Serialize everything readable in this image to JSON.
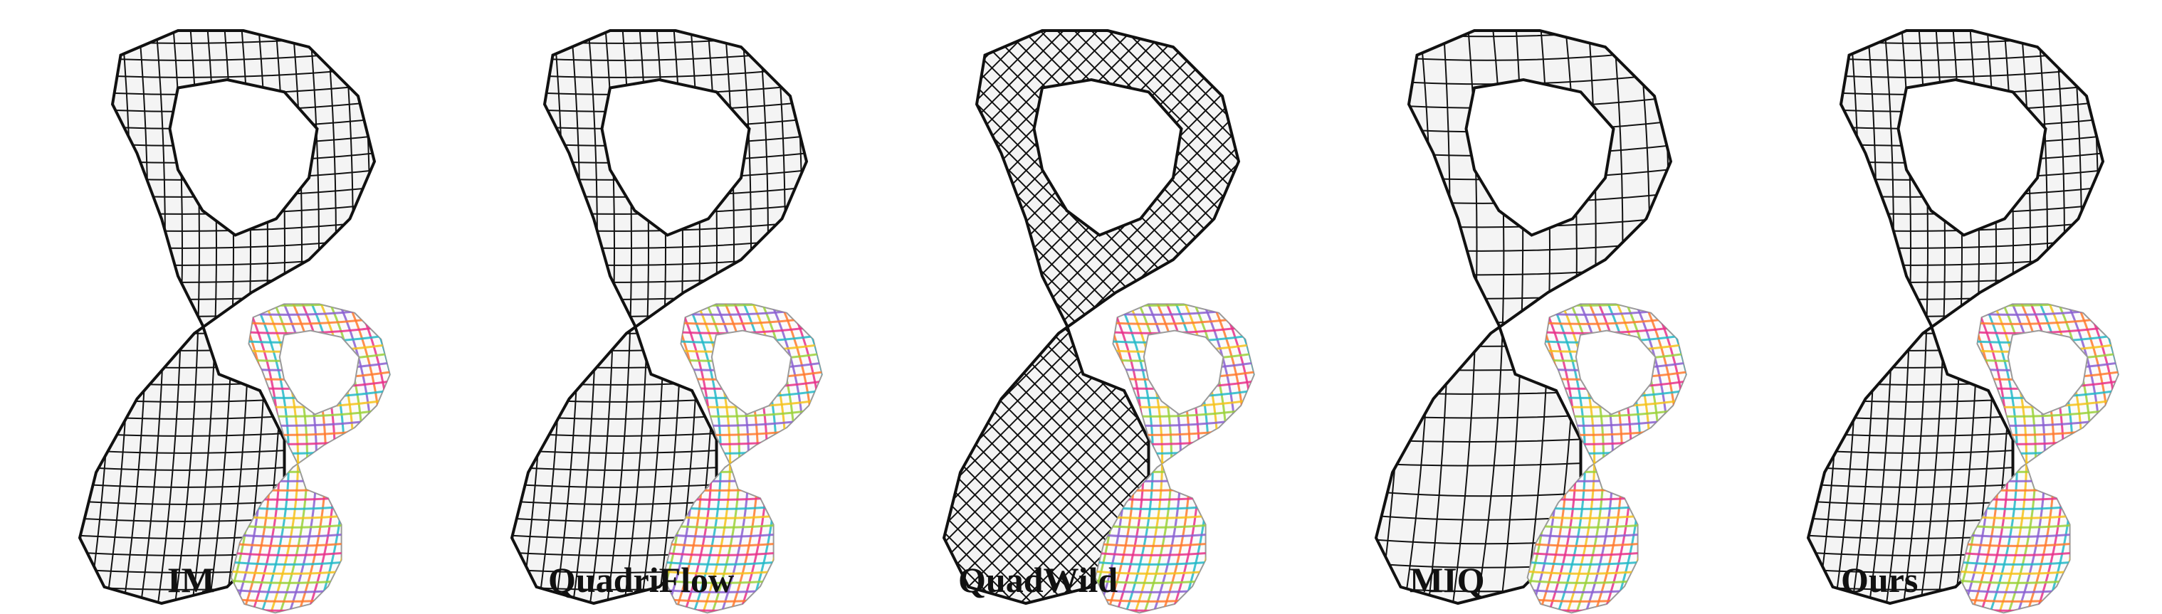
{
  "figure": {
    "panels": [
      {
        "label": "IM",
        "style": "regular"
      },
      {
        "label": "QuadriFlow",
        "style": "regular"
      },
      {
        "label": "QuadWild",
        "style": "diagonal"
      },
      {
        "label": "MIQ",
        "style": "irregular"
      },
      {
        "label": "Ours",
        "style": "regular"
      }
    ],
    "colors": {
      "mesh_stroke": "#111111",
      "mesh_fill": "#f4f4f4",
      "field_lines": [
        "#e8308a",
        "#22b8c8",
        "#f5c21b",
        "#9ad13a",
        "#8a5fd1",
        "#ff7a2e"
      ]
    },
    "icons": [
      "quad-mesh-icon",
      "cross-field-icon"
    ]
  }
}
